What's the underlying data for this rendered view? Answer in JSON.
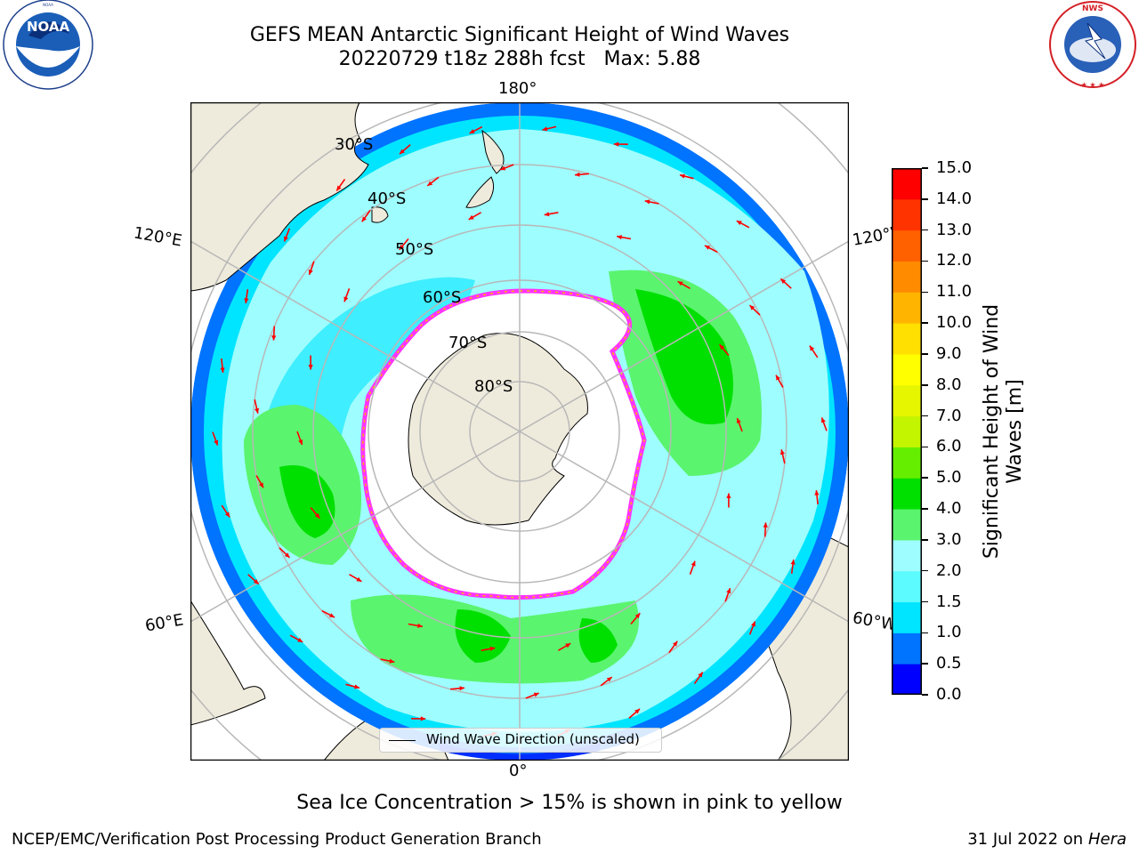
{
  "title": {
    "line1": "GEFS MEAN Antarctic Significant Height of Wind Waves",
    "line2": "20220729 t18z 288h fcst   Max: 5.88"
  },
  "logos": {
    "left": "noaa-logo",
    "right": "national-weather-service-logo",
    "noaa_text": "NOAA",
    "noaa_ring": "NATIONAL OCEANIC AND ATMOSPHERIC ADMINISTRATION",
    "noaa_ring_bottom": "U.S. DEPARTMENT OF COMMERCE",
    "nws_ring": "NATIONAL WEATHER SERVICE"
  },
  "map": {
    "projection": "south-polar-stereographic",
    "longitude_labels": {
      "top": "180°",
      "bottom": "0°",
      "left_upper": "120°E",
      "left_lower": "60°E",
      "right_upper": "120°W",
      "right_lower": "60°W"
    },
    "latitude_labels": [
      "30°S",
      "40°S",
      "50°S",
      "60°S",
      "70°S",
      "80°S"
    ],
    "legend_label": "Wind Wave Direction (unscaled)",
    "arrow_color": "#ff0000",
    "land_color": "#efebdc",
    "grid_color": "#b8b8b8"
  },
  "colorbar": {
    "label_line1": "Significant Height of Wind",
    "label_line2": "Waves [m]",
    "ticks": [
      "0.0",
      "0.5",
      "1.0",
      "1.5",
      "2.0",
      "3.0",
      "4.0",
      "5.0",
      "6.0",
      "7.0",
      "8.0",
      "9.0",
      "10.0",
      "11.0",
      "12.0",
      "13.0",
      "14.0",
      "15.0"
    ],
    "colors": [
      "#0000ff",
      "#0073ff",
      "#00e5ff",
      "#5cfbff",
      "#9efdff",
      "#5af46e",
      "#00e000",
      "#66ee00",
      "#c4f500",
      "#e6f500",
      "#ffff00",
      "#ffe000",
      "#ffb500",
      "#ff8c00",
      "#ff6000",
      "#ff3300",
      "#ff0000"
    ]
  },
  "note": "Sea Ice Concentration > 15% is shown in pink to yellow",
  "footer": {
    "left": "NCEP/EMC/Verification Post Processing Product Generation Branch",
    "right_prefix": "31 Jul 2022 on ",
    "right_host": "Hera"
  }
}
